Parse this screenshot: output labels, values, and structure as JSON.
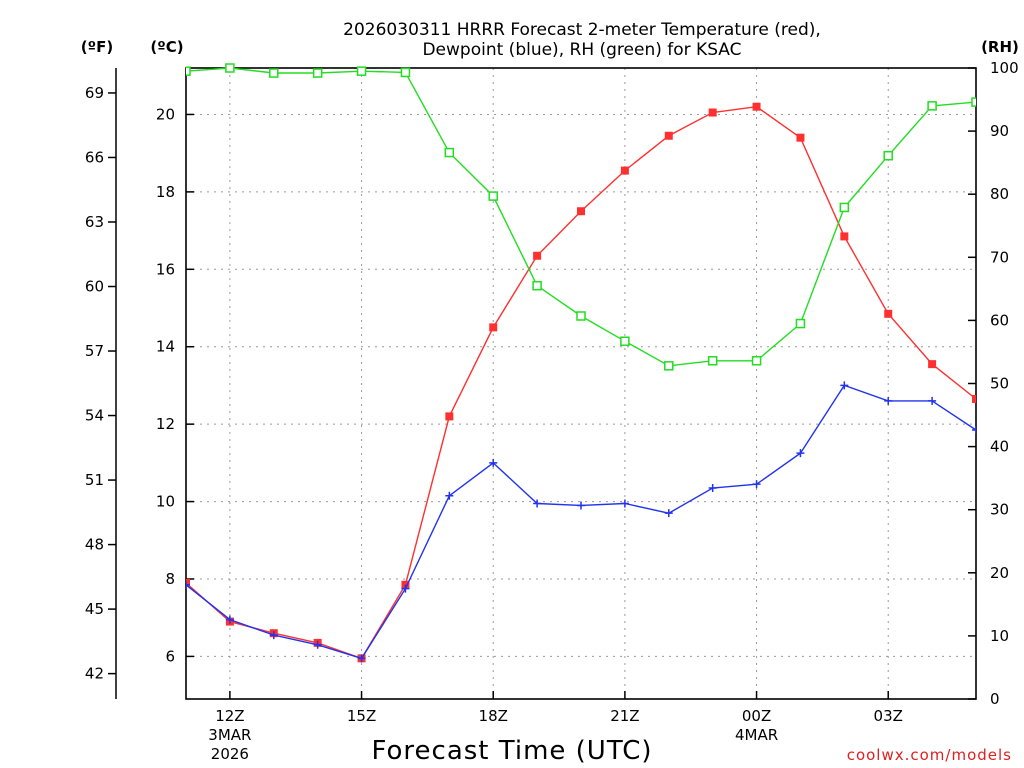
{
  "chart_data": {
    "type": "line",
    "title_line1": "2026030311 HRRR Forecast 2-meter Temperature (red),",
    "title_line2": "Dewpoint (blue), RH (green) for KSAC",
    "xlabel": "Forecast Time (UTC)",
    "credit": "coolwx.com/models",
    "unit_labels": {
      "fahrenheit": "(ºF)",
      "celsius": "(ºC)",
      "rh": "(RH)"
    },
    "x_hours": [
      11,
      12,
      13,
      14,
      15,
      16,
      17,
      18,
      19,
      20,
      21,
      22,
      23,
      24,
      25,
      26,
      27,
      28,
      29
    ],
    "xlim": [
      11,
      29
    ],
    "x_ticks": [
      {
        "hour": 12,
        "lines": [
          "12Z",
          "3MAR",
          "2026"
        ]
      },
      {
        "hour": 15,
        "lines": [
          "15Z"
        ]
      },
      {
        "hour": 18,
        "lines": [
          "18Z"
        ]
      },
      {
        "hour": 21,
        "lines": [
          "21Z"
        ]
      },
      {
        "hour": 24,
        "lines": [
          "00Z",
          "4MAR"
        ]
      },
      {
        "hour": 27,
        "lines": [
          "03Z"
        ]
      }
    ],
    "celsius_axis": {
      "ylim": [
        4.9,
        21.2
      ],
      "ticks": [
        "6",
        "8",
        "10",
        "12",
        "14",
        "16",
        "18",
        "20"
      ]
    },
    "fahrenheit_axis": {
      "ylim": [
        40.82,
        70.16
      ],
      "ticks": [
        "42",
        "45",
        "48",
        "51",
        "54",
        "57",
        "60",
        "63",
        "66",
        "69"
      ]
    },
    "rh_axis": {
      "ylim": [
        0,
        100
      ],
      "ticks": [
        "0",
        "10",
        "20",
        "30",
        "40",
        "50",
        "60",
        "70",
        "80",
        "90",
        "100"
      ]
    },
    "series": [
      {
        "name": "Temperature",
        "axis": "celsius",
        "color": "#ff3030",
        "marker": "filled-square",
        "values": [
          7.9,
          6.9,
          6.6,
          6.35,
          5.95,
          7.85,
          12.2,
          14.5,
          16.35,
          17.5,
          18.55,
          19.45,
          20.05,
          20.2,
          19.4,
          16.85,
          14.85,
          13.55,
          12.65
        ]
      },
      {
        "name": "Dewpoint",
        "axis": "celsius",
        "color": "#2233ee",
        "marker": "plus",
        "values": [
          7.85,
          6.95,
          6.55,
          6.3,
          5.95,
          7.75,
          10.15,
          11.0,
          9.95,
          9.9,
          9.95,
          9.7,
          10.35,
          10.45,
          11.25,
          13.0,
          12.6,
          12.6,
          11.85
        ]
      },
      {
        "name": "RH",
        "axis": "rh",
        "color": "#22dd22",
        "marker": "open-square",
        "values": [
          99.5,
          100,
          99.2,
          99.2,
          99.5,
          99.3,
          86.6,
          79.7,
          65.5,
          60.7,
          56.7,
          52.8,
          53.6,
          53.6,
          59.5,
          77.9,
          86.1,
          94,
          94.6
        ]
      }
    ]
  }
}
